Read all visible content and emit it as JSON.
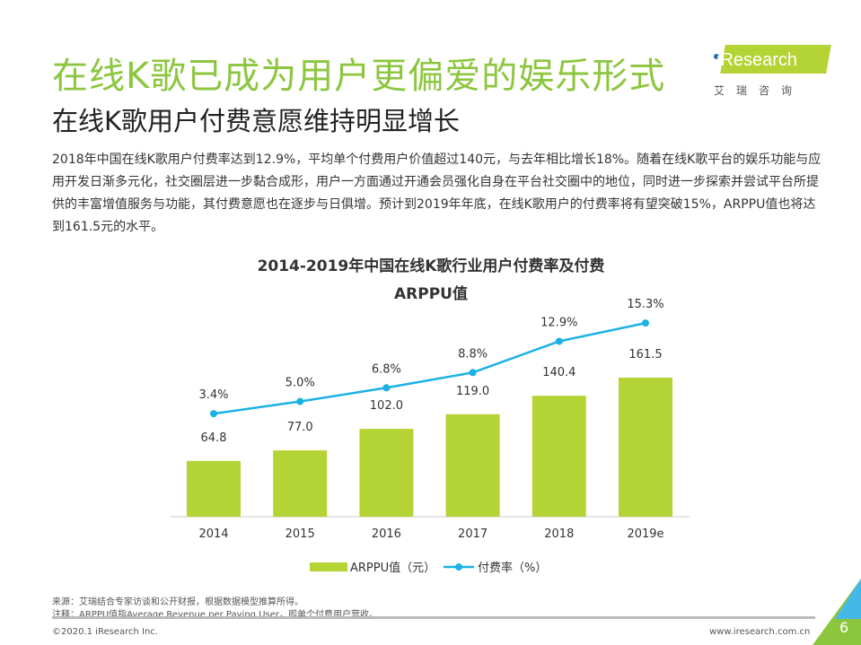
{
  "title": "在线K歌已成为用户更偏爱的娱乐形式",
  "subtitle": "在线K歌用户付费意愿维持明显增长",
  "body": "2018年中国在线K歌用户付费率达到12.9%，平均单个付费用户价值超过140元，与去年相比增长18%。随着在线K歌平台的娱乐功能与应用开发日渐多元化，社交圈层进一步黏合成形，用户一方面通过开通会员强化自身在平台社交圈中的地位，同时进一步探索并尝试平台所提供的丰富增值服务与功能，其付费意愿也在逐步与日俱增。预计到2019年年底，在线K歌用户的付费率将有望突破15%，ARPPU值也将达到161.5元的水平。",
  "logo": {
    "text": "iResearch",
    "cn": "艾瑞咨询"
  },
  "chart_data": {
    "type": "bar+line",
    "title_line1": "2014-2019年中国在线K歌行业用户付费率及付费",
    "title_line2": "ARPPU值",
    "categories": [
      "2014",
      "2015",
      "2016",
      "2017",
      "2018",
      "2019e"
    ],
    "series": [
      {
        "name": "ARPPU值（元）",
        "type": "bar",
        "color": "#b4d334",
        "values": [
          64.8,
          77.0,
          102.0,
          119.0,
          140.4,
          161.5
        ],
        "labels": [
          "64.8",
          "77.0",
          "102.0",
          "119.0",
          "140.4",
          "161.5"
        ]
      },
      {
        "name": "付费率（%）",
        "type": "line",
        "color": "#1ab1e6",
        "values": [
          3.4,
          5.0,
          6.8,
          8.8,
          12.9,
          15.3
        ],
        "labels": [
          "3.4%",
          "5.0%",
          "6.8%",
          "8.8%",
          "12.9%",
          "15.3%"
        ]
      }
    ],
    "legend": "bottom"
  },
  "footer": {
    "source": "来源：艾瑞结合专家访谈和公开财报，根据数据模型推算所得。",
    "note": "注释：ARPPU值指Average Revenue per Paying User，即单个付费用户营收。",
    "copyright": "©2020.1 iResearch Inc.",
    "website": "www.iresearch.com.cn",
    "page": "6"
  }
}
